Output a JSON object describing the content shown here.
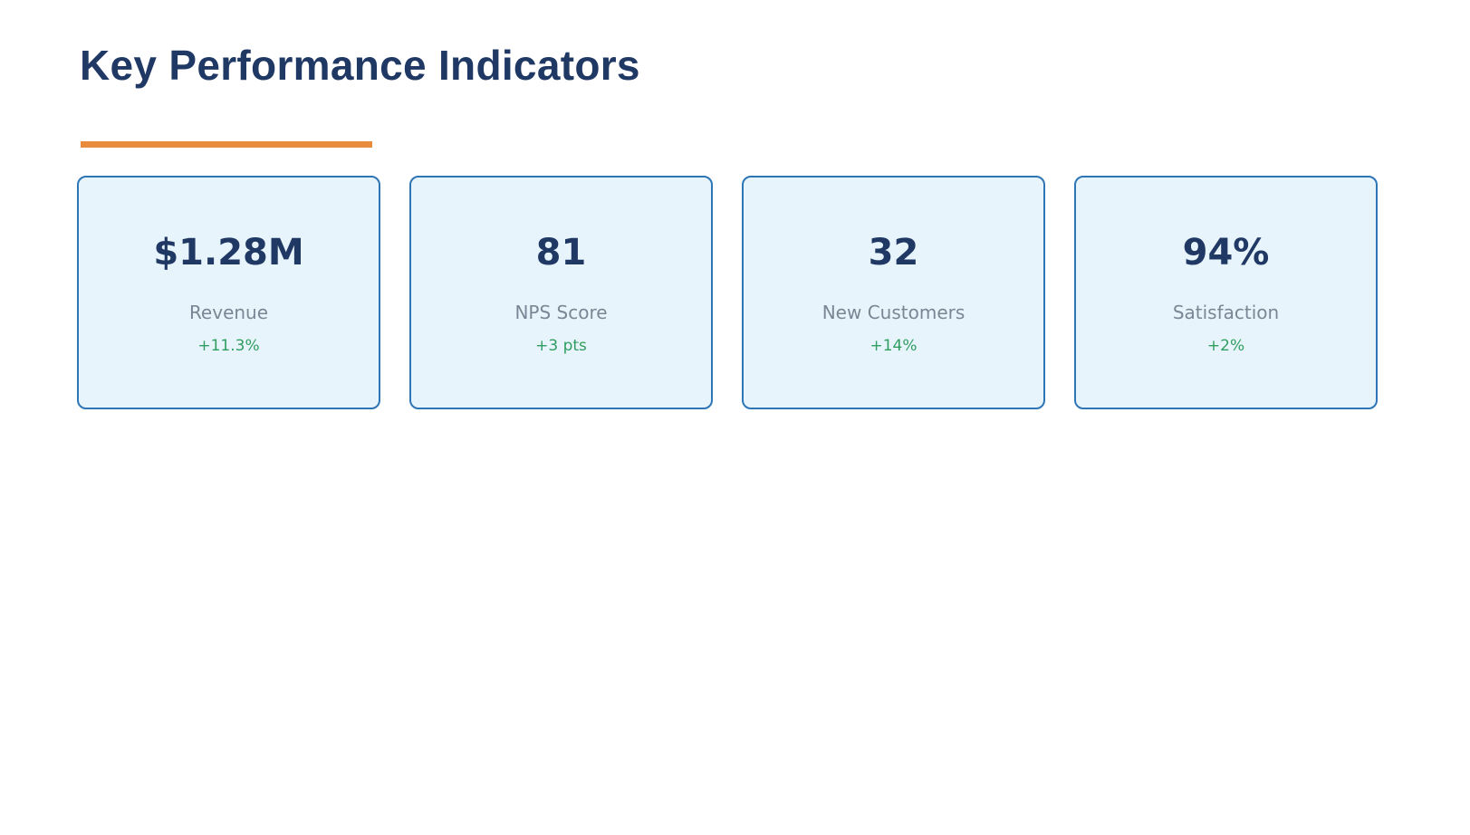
{
  "page": {
    "title": "Key Performance Indicators"
  },
  "kpis": [
    {
      "value": "$1.28M",
      "label": "Revenue",
      "delta": "+11.3%"
    },
    {
      "value": "81",
      "label": "NPS Score",
      "delta": "+3 pts"
    },
    {
      "value": "32",
      "label": "New Customers",
      "delta": "+14%"
    },
    {
      "value": "94%",
      "label": "Satisfaction",
      "delta": "+2%"
    }
  ],
  "colors": {
    "title_navy": "#1f3864",
    "accent_orange": "#e88b3d",
    "card_background": "#e8f4fc",
    "card_border_blue": "#2e75b6",
    "label_gray": "#7a8694",
    "delta_green": "#2f9e60"
  }
}
